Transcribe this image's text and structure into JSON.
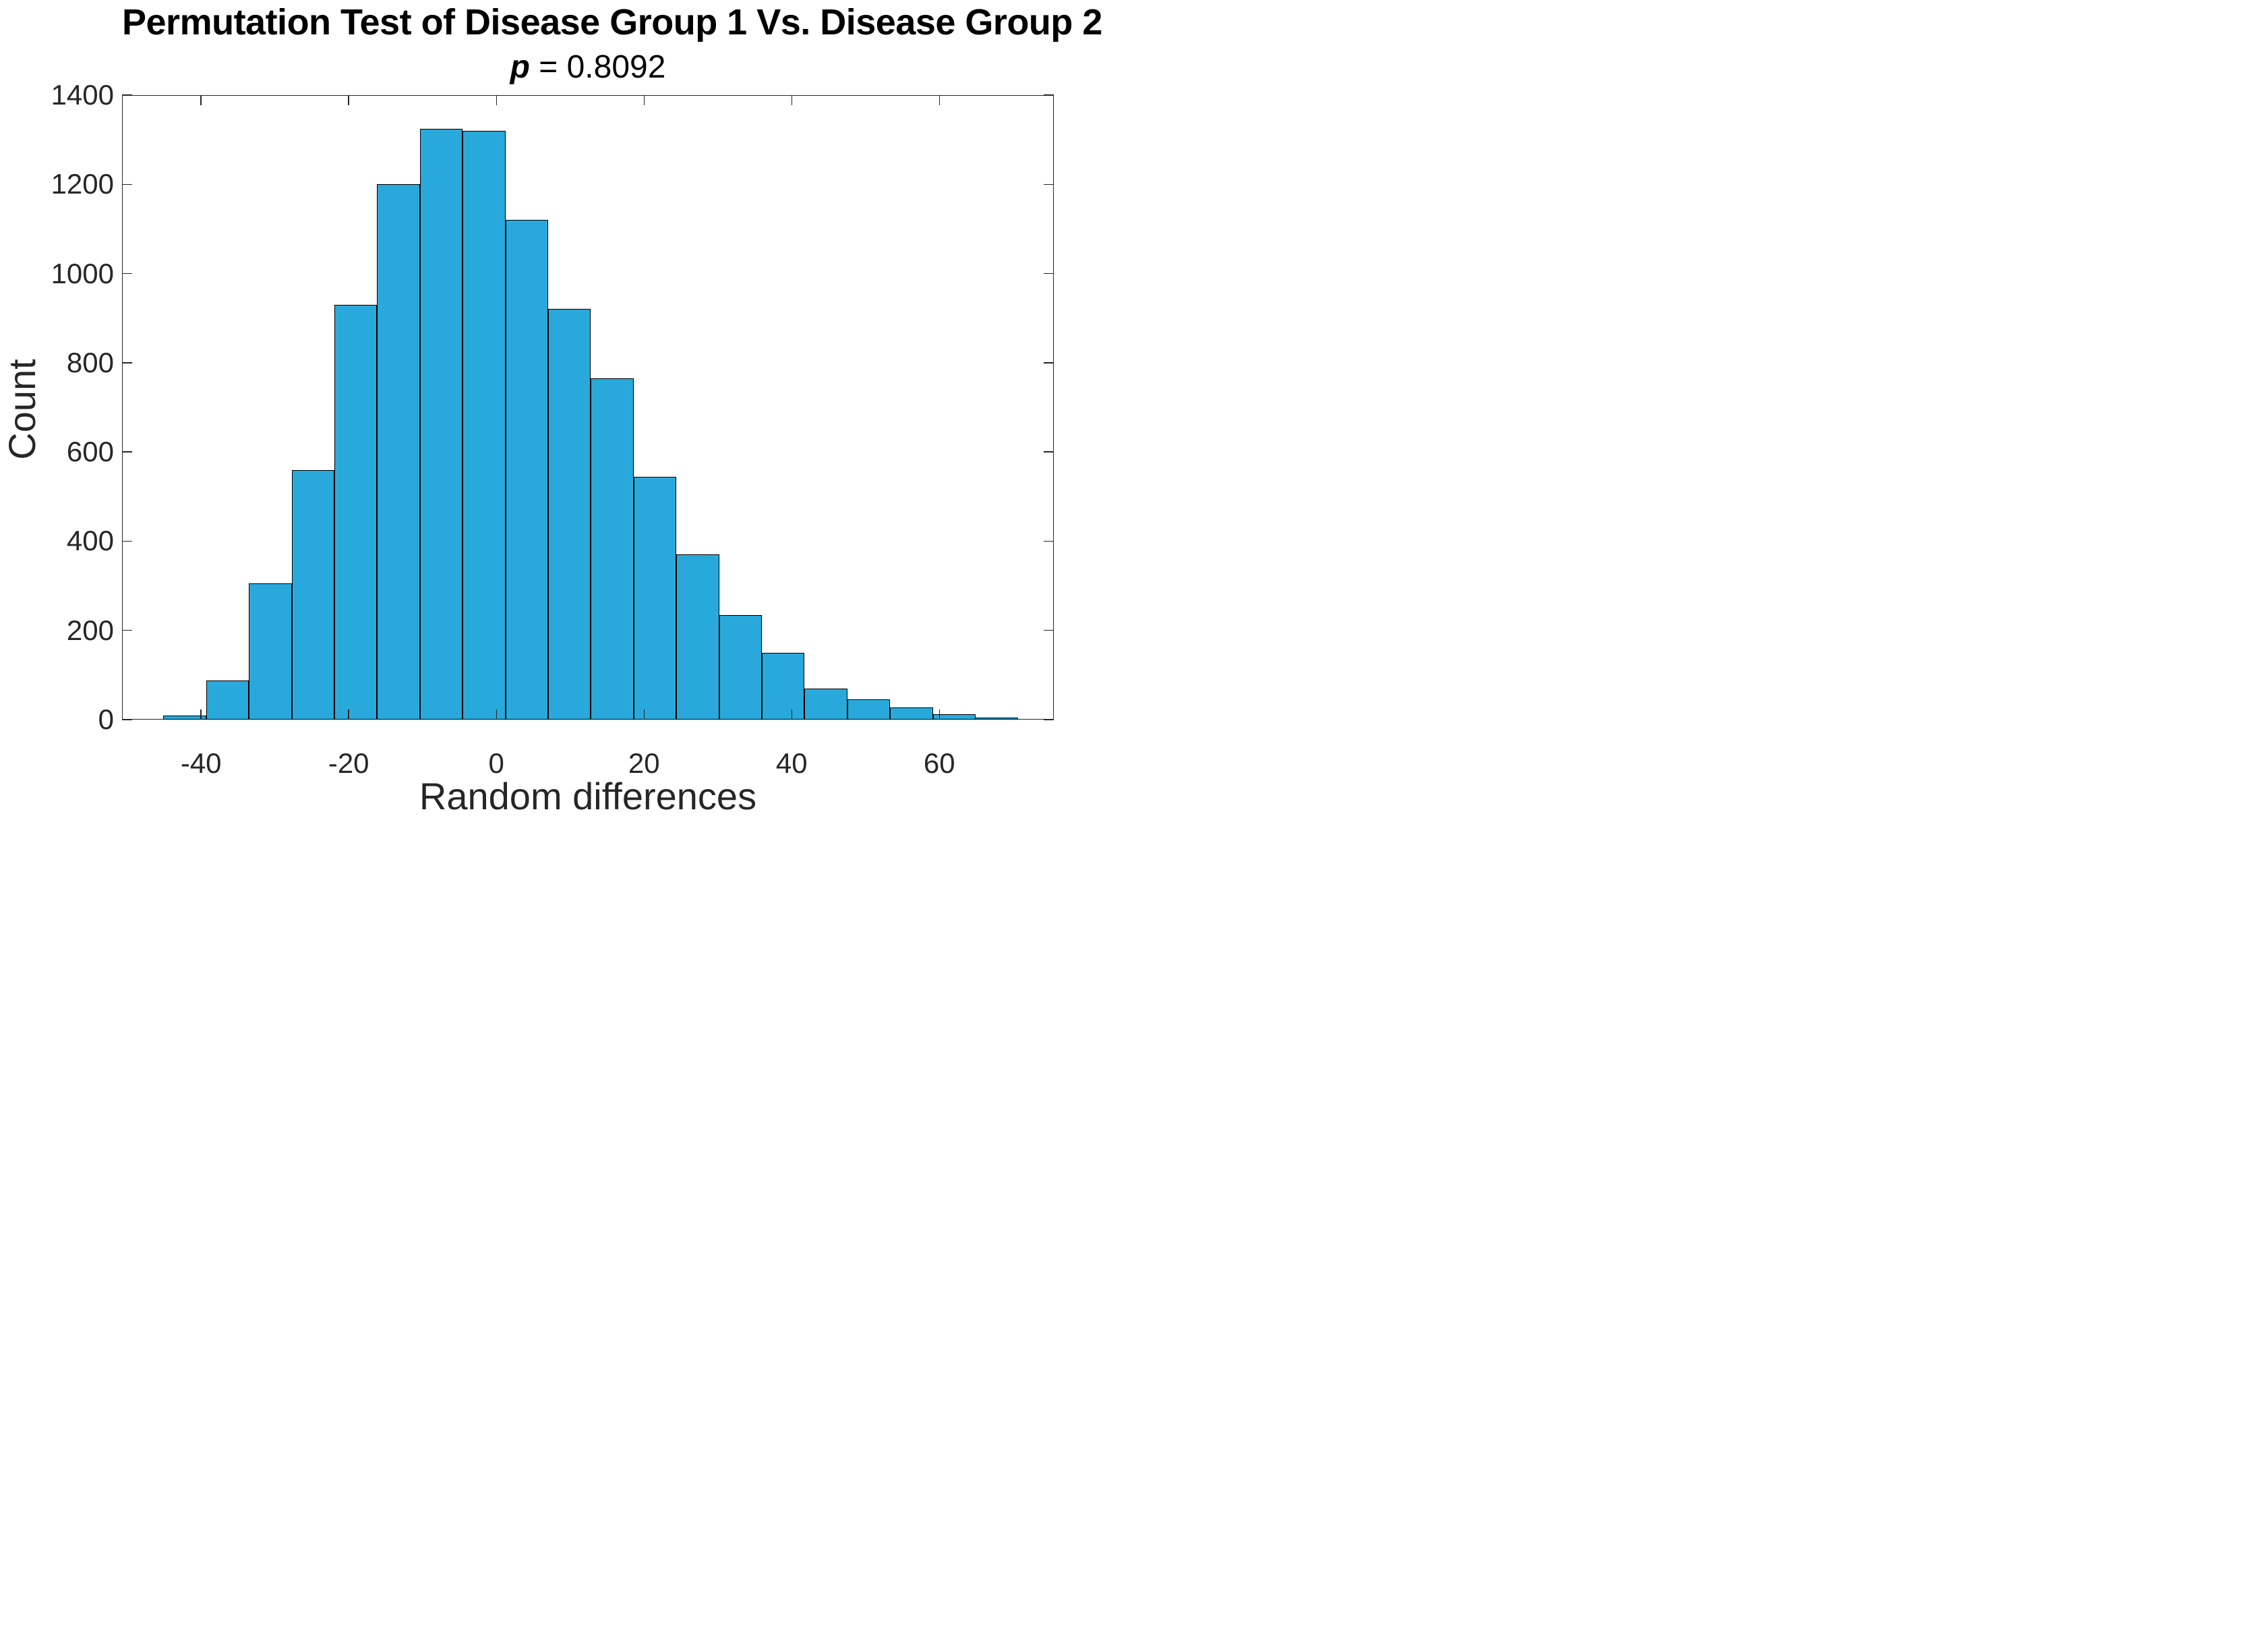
{
  "figure": {
    "title": "Permutation Test of Disease Group 1 Vs. Disease Group 2",
    "subtitle_emphasis": "p",
    "subtitle_rest": " = 0.8092"
  },
  "chart_data": {
    "type": "bar",
    "chart_kind": "histogram",
    "title": "Permutation Test of Disease Group 1 Vs. Disease Group 2",
    "subtitle": "p = 0.8092",
    "p_value": 0.8092,
    "xlabel": "Random differences",
    "ylabel": "Count",
    "xlim": [
      -50.7,
      75.5
    ],
    "ylim": [
      0,
      1400
    ],
    "xticks": [
      -40,
      -20,
      0,
      20,
      40,
      60
    ],
    "yticks": [
      0,
      200,
      400,
      600,
      800,
      1000,
      1200,
      1400
    ],
    "grid": false,
    "legend": null,
    "total_samples": 10000,
    "bin_edges": [
      -45.1,
      -39.31,
      -33.52,
      -27.73,
      -21.94,
      -16.15,
      -10.36,
      -4.57,
      1.22,
      7.01,
      12.8,
      18.59,
      24.38,
      30.17,
      35.96,
      41.75,
      47.54,
      53.33,
      59.12,
      64.91,
      70.7
    ],
    "counts": [
      9,
      88,
      305,
      560,
      930,
      1200,
      1325,
      1320,
      1120,
      920,
      765,
      545,
      370,
      235,
      150,
      70,
      45,
      27,
      12,
      3
    ],
    "colors": {
      "bar_fill": "#29A9DB",
      "bar_edge": "#000000",
      "axis": "#262626",
      "text": "#000000",
      "background": "#FFFFFF"
    }
  }
}
